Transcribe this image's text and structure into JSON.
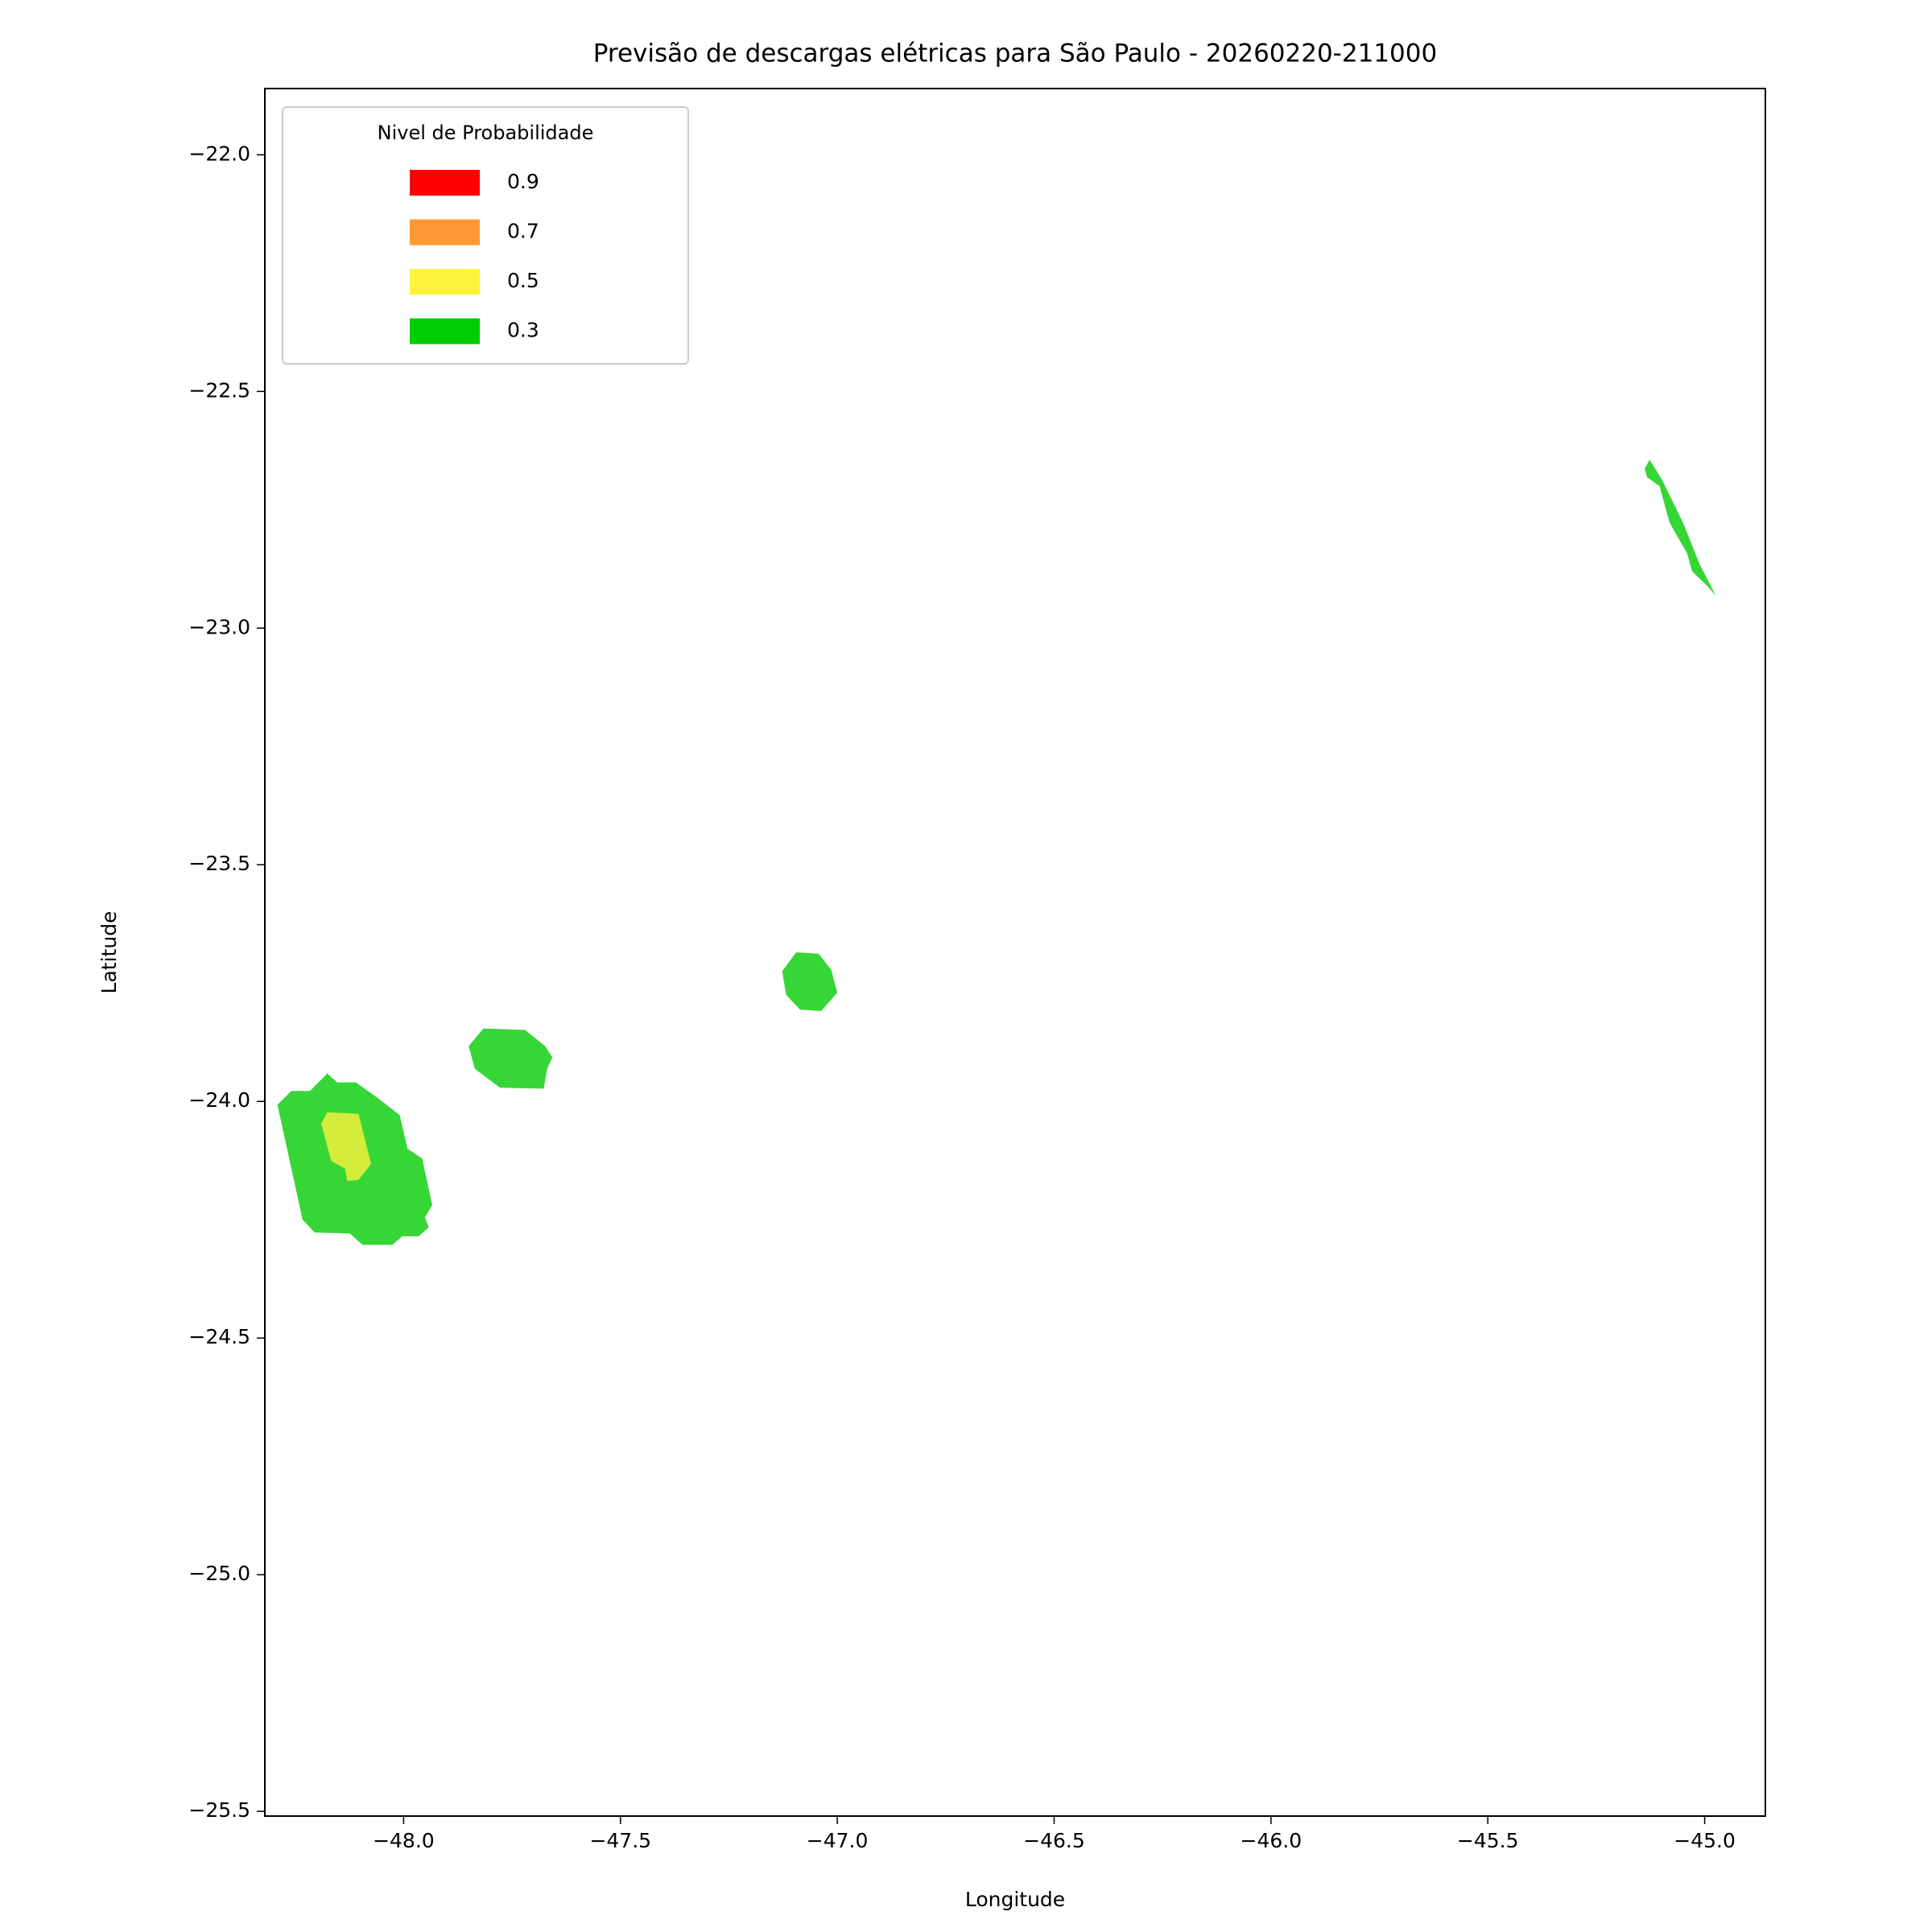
{
  "chart_data": {
    "type": "contour",
    "title": "Previsão de descargas elétricas para São Paulo - 20260220-211000",
    "x_label": "Longitude",
    "y_label": "Latitude",
    "xlim": [
      -48.32,
      -44.86
    ],
    "ylim": [
      -25.51,
      -21.86
    ],
    "xticks": [
      {
        "value": -48.0,
        "label": "−48.0"
      },
      {
        "value": -47.5,
        "label": "−47.5"
      },
      {
        "value": -47.0,
        "label": "−47.0"
      },
      {
        "value": -46.5,
        "label": "−46.5"
      },
      {
        "value": -46.0,
        "label": "−46.0"
      },
      {
        "value": -45.5,
        "label": "−45.5"
      },
      {
        "value": -45.0,
        "label": "−45.0"
      }
    ],
    "yticks": [
      {
        "value": -22.0,
        "label": "−22.0"
      },
      {
        "value": -22.5,
        "label": "−22.5"
      },
      {
        "value": -23.0,
        "label": "−23.0"
      },
      {
        "value": -23.5,
        "label": "−23.5"
      },
      {
        "value": -24.0,
        "label": "−24.0"
      },
      {
        "value": -24.5,
        "label": "−24.5"
      },
      {
        "value": -25.0,
        "label": "−25.0"
      },
      {
        "value": -25.5,
        "label": "−25.5"
      }
    ],
    "legend": {
      "title": "Nivel de Probabilidade",
      "corner": "upper-left",
      "entries": [
        {
          "label": "0.9",
          "color": "#ff0000"
        },
        {
          "label": "0.7",
          "color": "#ff9933"
        },
        {
          "label": "0.5",
          "color": "#fff23f"
        },
        {
          "label": "0.3",
          "color": "#00cc00"
        }
      ]
    },
    "regions": [
      {
        "color": "#36d636",
        "lon": [
          -48.291,
          -48.259,
          -48.216,
          -48.176,
          -48.153,
          -48.11,
          -48.058,
          -48.009,
          -47.991,
          -47.957,
          -47.934,
          -47.951,
          -47.942,
          -47.965,
          -48.003,
          -48.026,
          -48.095,
          -48.124,
          -48.205,
          -48.233
        ],
        "lat": [
          -24.007,
          -23.978,
          -23.978,
          -23.941,
          -23.96,
          -23.96,
          -23.994,
          -24.029,
          -24.1,
          -24.121,
          -24.219,
          -24.245,
          -24.266,
          -24.285,
          -24.285,
          -24.303,
          -24.303,
          -24.279,
          -24.277,
          -24.25
        ]
      },
      {
        "color": "#d4ec3c",
        "lon": [
          -48.19,
          -48.176,
          -48.104,
          -48.075,
          -48.104,
          -48.13,
          -48.135,
          -48.167
        ],
        "lat": [
          -24.047,
          -24.023,
          -24.026,
          -24.132,
          -24.166,
          -24.168,
          -24.142,
          -24.126
        ]
      },
      {
        "color": "#36d636",
        "lon": [
          -47.85,
          -47.816,
          -47.72,
          -47.674,
          -47.657,
          -47.669,
          -47.677,
          -47.778,
          -47.836
        ],
        "lat": [
          -23.883,
          -23.846,
          -23.849,
          -23.883,
          -23.907,
          -23.931,
          -23.973,
          -23.971,
          -23.931
        ]
      },
      {
        "color": "#36d636",
        "lon": [
          -47.127,
          -47.095,
          -47.043,
          -47.014,
          -47.0,
          -47.037,
          -47.086,
          -47.118
        ],
        "lat": [
          -23.725,
          -23.685,
          -23.688,
          -23.722,
          -23.77,
          -23.809,
          -23.806,
          -23.775
        ]
      },
      {
        "color": "#36d636",
        "lon": [
          -45.138,
          -45.127,
          -45.098,
          -45.049,
          -45.012,
          -44.974,
          -44.994,
          -45.029,
          -45.04,
          -45.081,
          -45.104,
          -45.133
        ],
        "lat": [
          -22.663,
          -22.644,
          -22.687,
          -22.779,
          -22.864,
          -22.932,
          -22.911,
          -22.88,
          -22.843,
          -22.777,
          -22.7,
          -22.681
        ]
      }
    ]
  }
}
